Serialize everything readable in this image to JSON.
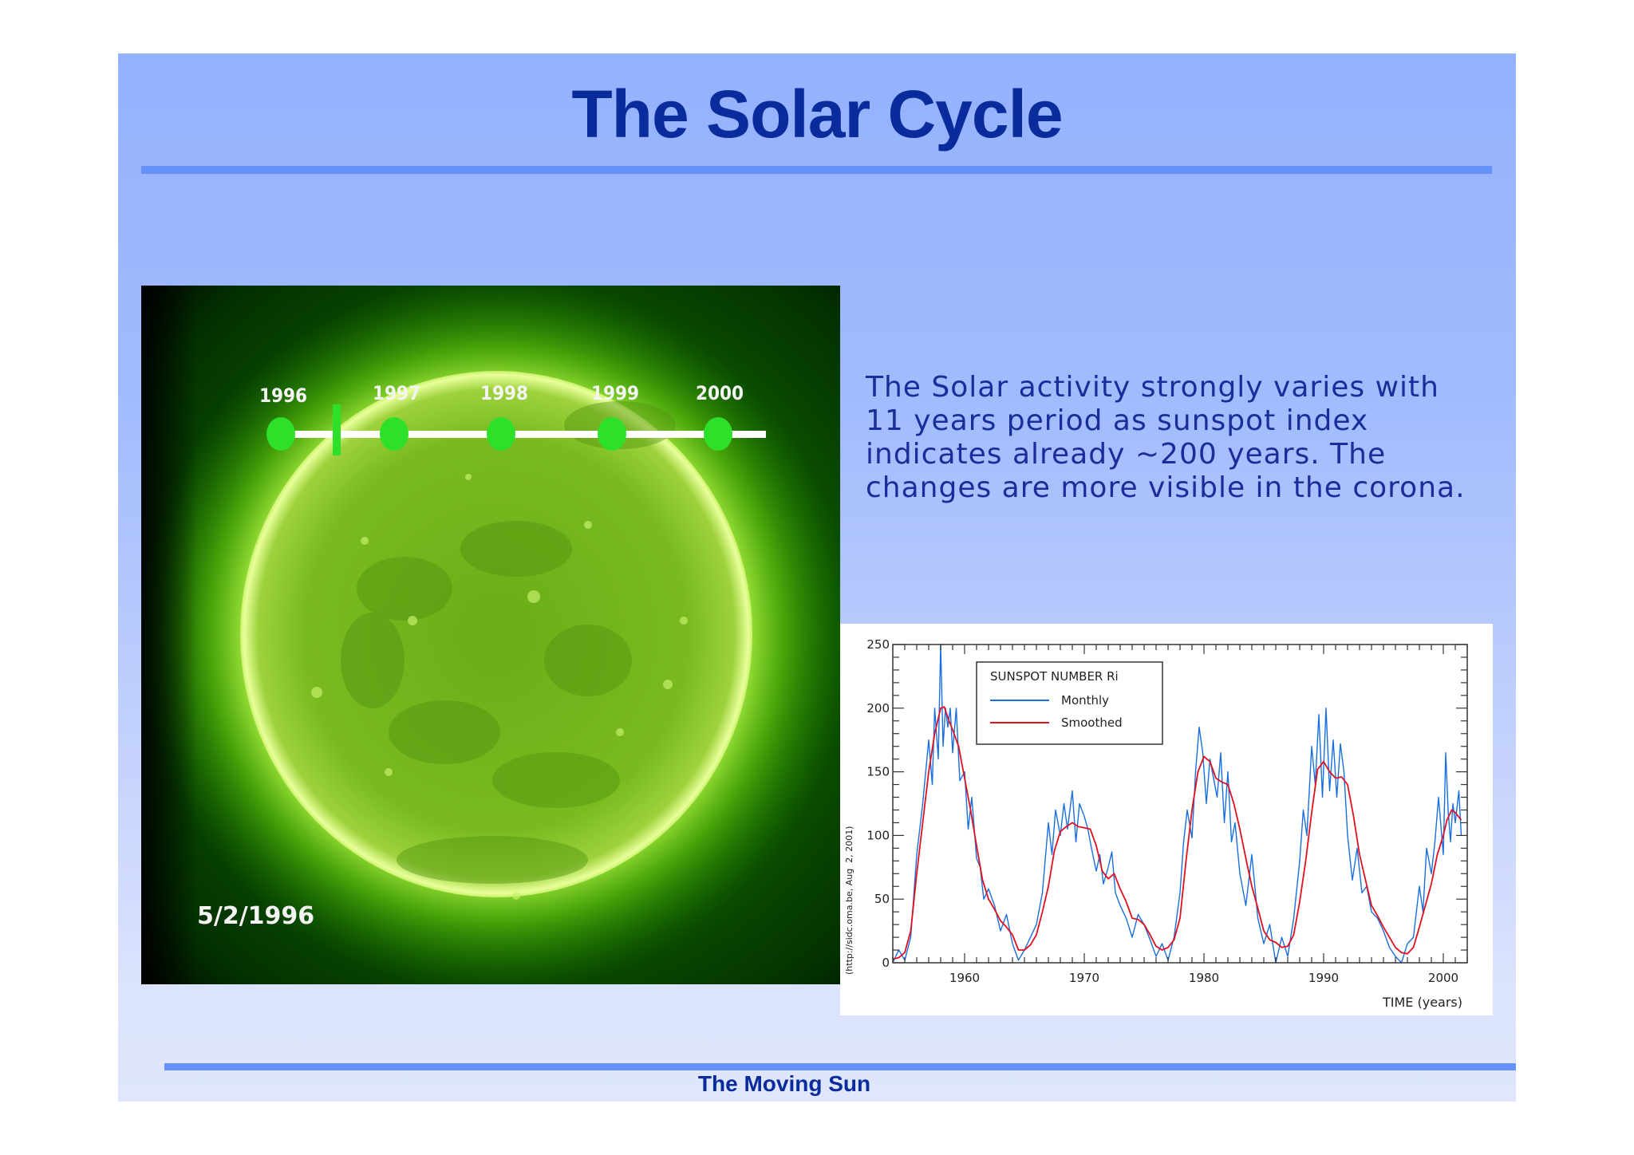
{
  "slide": {
    "title": "The Solar Cycle",
    "footer": "The Moving Sun",
    "body_lines": [
      "The Solar activity strongly varies with",
      "11 years period as sunspot index",
      "indicates already ~200 years. The",
      "changes are more visible in the corona."
    ],
    "colors": {
      "title": "#0a2b9c",
      "rule": "#6690fa",
      "background_top": "#93b1fd",
      "background_bottom": "#dfe6fd"
    }
  },
  "sun_image": {
    "date_label": "5/2/1996",
    "timeline_years": [
      "1996",
      "1997",
      "1998",
      "1999",
      "2000"
    ],
    "timeline_marker_position": "between 1996 and 1997",
    "colors": {
      "disk": "#7fc21f",
      "dots": "#2ee02a",
      "bar": "#ffffff"
    }
  },
  "chart_data": {
    "type": "line",
    "title": "SUNSPOT NUMBER Ri",
    "xlabel": "TIME (years)",
    "ylabel": "",
    "side_credit": "(http://sidc.oma.be, Aug  2, 2001)",
    "xlim": [
      1954,
      2002
    ],
    "ylim": [
      0,
      250
    ],
    "x_ticks": [
      "1960",
      "1970",
      "1980",
      "1990",
      "2000"
    ],
    "y_ticks": [
      "0",
      "50",
      "100",
      "150",
      "200",
      "250"
    ],
    "grid": false,
    "legend": {
      "position": "upper-left inside",
      "entries": [
        "Monthly",
        "Smoothed"
      ]
    },
    "series": [
      {
        "name": "Smoothed",
        "color": "#e0101e",
        "x": [
          1954.0,
          1954.5,
          1955.0,
          1955.5,
          1956.0,
          1956.5,
          1957.0,
          1957.5,
          1958.0,
          1958.3,
          1958.7,
          1959.0,
          1959.5,
          1960.0,
          1960.5,
          1961.0,
          1961.5,
          1962.0,
          1962.5,
          1963.0,
          1963.5,
          1964.0,
          1964.5,
          1965.0,
          1965.5,
          1966.0,
          1966.5,
          1967.0,
          1967.5,
          1968.0,
          1968.5,
          1969.0,
          1969.5,
          1970.0,
          1970.5,
          1971.0,
          1971.5,
          1972.0,
          1972.5,
          1973.0,
          1973.5,
          1974.0,
          1974.5,
          1975.0,
          1975.5,
          1976.0,
          1976.5,
          1977.0,
          1977.5,
          1978.0,
          1978.5,
          1979.0,
          1979.5,
          1980.0,
          1980.5,
          1981.0,
          1981.5,
          1982.0,
          1982.5,
          1983.0,
          1983.5,
          1984.0,
          1984.5,
          1985.0,
          1985.5,
          1986.0,
          1986.5,
          1987.0,
          1987.5,
          1988.0,
          1988.5,
          1989.0,
          1989.5,
          1990.0,
          1990.5,
          1991.0,
          1991.5,
          1992.0,
          1992.5,
          1993.0,
          1993.5,
          1994.0,
          1994.5,
          1995.0,
          1995.5,
          1996.0,
          1996.5,
          1997.0,
          1997.5,
          1998.0,
          1998.5,
          1999.0,
          1999.5,
          2000.0,
          2000.3,
          2000.7,
          2001.0,
          2001.5
        ],
        "values": [
          3,
          4,
          8,
          25,
          70,
          110,
          150,
          180,
          200,
          201,
          190,
          183,
          170,
          145,
          120,
          92,
          65,
          50,
          42,
          33,
          28,
          22,
          10,
          10,
          14,
          22,
          40,
          60,
          88,
          103,
          107,
          110,
          107,
          106,
          105,
          92,
          72,
          66,
          70,
          58,
          48,
          35,
          34,
          30,
          22,
          13,
          10,
          12,
          18,
          35,
          80,
          120,
          150,
          162,
          158,
          145,
          142,
          140,
          125,
          105,
          82,
          60,
          43,
          25,
          18,
          16,
          12,
          13,
          22,
          48,
          80,
          118,
          152,
          158,
          150,
          145,
          146,
          140,
          115,
          85,
          65,
          45,
          37,
          28,
          20,
          12,
          8,
          7,
          12,
          28,
          45,
          62,
          85,
          100,
          112,
          120,
          118,
          112
        ]
      },
      {
        "name": "Monthly",
        "color": "#1a6fe0",
        "x": [
          1954.0,
          1954.5,
          1955.0,
          1955.5,
          1956.0,
          1956.5,
          1957.0,
          1957.3,
          1957.5,
          1957.8,
          1958.0,
          1958.2,
          1958.4,
          1958.6,
          1958.8,
          1959.0,
          1959.3,
          1959.6,
          1960.0,
          1960.3,
          1960.6,
          1961.0,
          1961.3,
          1961.6,
          1962.0,
          1962.5,
          1963.0,
          1963.5,
          1964.0,
          1964.5,
          1965.0,
          1965.5,
          1966.0,
          1966.5,
          1967.0,
          1967.3,
          1967.6,
          1968.0,
          1968.3,
          1968.6,
          1969.0,
          1969.3,
          1969.6,
          1970.0,
          1970.3,
          1970.6,
          1971.0,
          1971.3,
          1971.6,
          1972.0,
          1972.3,
          1972.6,
          1973.0,
          1973.5,
          1974.0,
          1974.5,
          1975.0,
          1975.5,
          1976.0,
          1976.5,
          1977.0,
          1977.5,
          1978.0,
          1978.3,
          1978.6,
          1979.0,
          1979.3,
          1979.6,
          1979.9,
          1980.2,
          1980.5,
          1980.8,
          1981.1,
          1981.4,
          1981.7,
          1982.0,
          1982.3,
          1982.6,
          1983.0,
          1983.5,
          1984.0,
          1984.5,
          1985.0,
          1985.5,
          1986.0,
          1986.5,
          1987.0,
          1987.5,
          1988.0,
          1988.3,
          1988.6,
          1989.0,
          1989.3,
          1989.6,
          1989.9,
          1990.2,
          1990.5,
          1990.8,
          1991.1,
          1991.4,
          1991.7,
          1992.0,
          1992.4,
          1992.8,
          1993.2,
          1993.6,
          1994.0,
          1994.5,
          1995.0,
          1995.5,
          1996.0,
          1996.5,
          1997.0,
          1997.5,
          1998.0,
          1998.3,
          1998.6,
          1999.0,
          1999.3,
          1999.6,
          2000.0,
          2000.2,
          2000.4,
          2000.6,
          2000.8,
          2001.0,
          2001.3,
          2001.5
        ],
        "values": [
          0,
          10,
          2,
          20,
          85,
          125,
          175,
          140,
          200,
          160,
          250,
          170,
          200,
          185,
          200,
          165,
          200,
          143,
          150,
          105,
          130,
          82,
          75,
          50,
          58,
          45,
          25,
          38,
          15,
          2,
          10,
          20,
          30,
          55,
          110,
          85,
          120,
          100,
          125,
          105,
          135,
          95,
          125,
          115,
          105,
          90,
          72,
          85,
          62,
          75,
          87,
          55,
          45,
          35,
          20,
          38,
          30,
          18,
          5,
          15,
          2,
          20,
          55,
          95,
          120,
          98,
          150,
          185,
          165,
          125,
          160,
          145,
          130,
          165,
          110,
          150,
          95,
          110,
          70,
          45,
          85,
          35,
          15,
          30,
          0,
          20,
          5,
          35,
          80,
          120,
          100,
          170,
          140,
          195,
          130,
          200,
          135,
          175,
          130,
          172,
          150,
          100,
          65,
          90,
          55,
          60,
          40,
          35,
          25,
          12,
          5,
          0,
          15,
          20,
          60,
          40,
          90,
          70,
          95,
          130,
          85,
          165,
          120,
          95,
          125,
          110,
          135,
          100
        ]
      }
    ]
  }
}
